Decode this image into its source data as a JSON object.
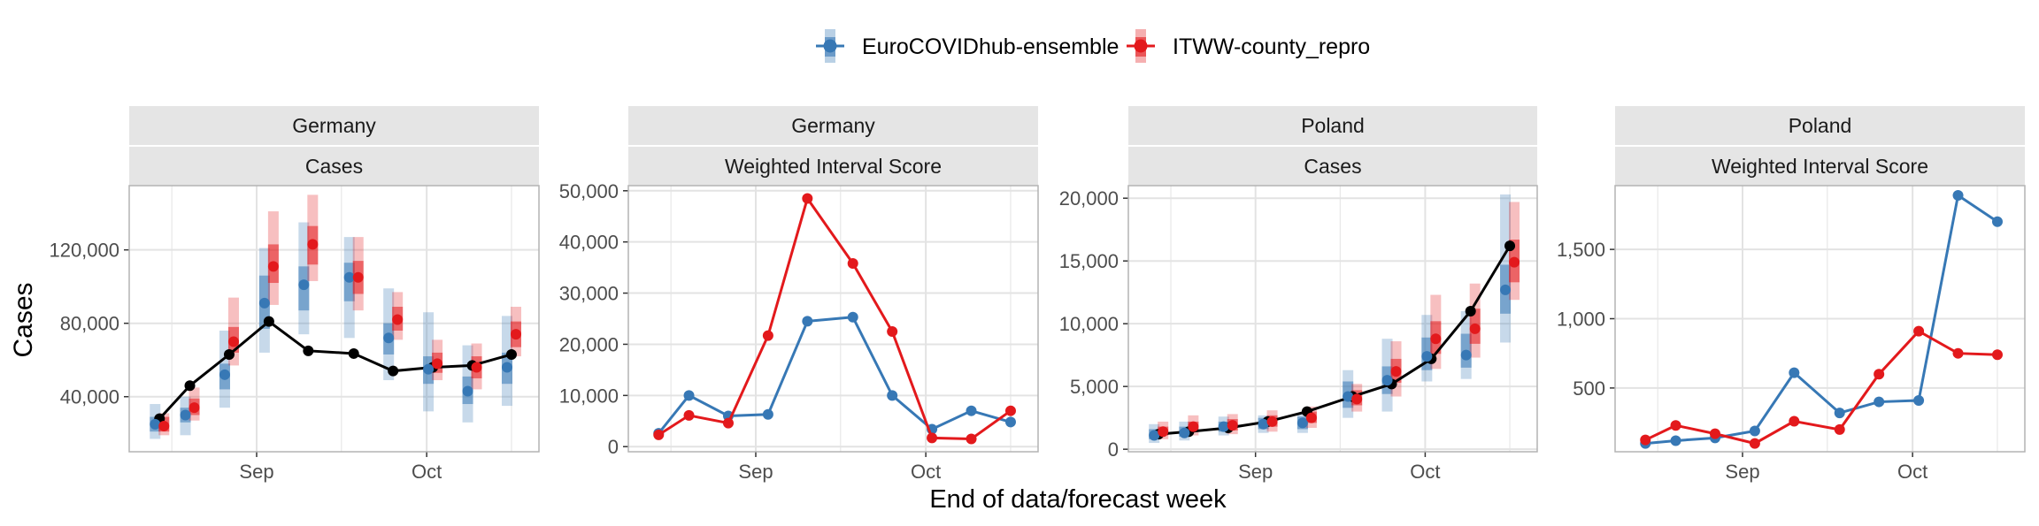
{
  "legend": {
    "items": [
      {
        "label": "EuroCOVIDhub-ensemble",
        "color": "#3778b5"
      },
      {
        "label": "ITWW-county_repro",
        "color": "#e3191c"
      }
    ]
  },
  "shared": {
    "ylabel": "Cases",
    "xlabel": "End of data/forecast week",
    "observed_color": "#000000",
    "strip_fill": "#e5e5e5",
    "grid_color": "#e3e3e3"
  },
  "chart_data": [
    {
      "type": "line",
      "strip": [
        "Germany",
        "Cases"
      ],
      "x_ticks": [
        "Sep",
        "Oct"
      ],
      "y_ticks": [
        "40,000",
        "80,000",
        "120,000"
      ],
      "ylim": [
        10000,
        155000
      ],
      "observed": [
        28000,
        46000,
        63000,
        81000,
        65000,
        63500,
        54000,
        56000,
        57000,
        63000
      ],
      "series": [
        {
          "name": "EuroCOVIDhub-ensemble",
          "median": [
            25000,
            30000,
            52000,
            91000,
            101000,
            105000,
            72000,
            55000,
            43000,
            56000
          ],
          "inner": [
            [
              21000,
              29000
            ],
            [
              26000,
              34000
            ],
            [
              44000,
              58000
            ],
            [
              77000,
              106000
            ],
            [
              87000,
              111000
            ],
            [
              92000,
              113000
            ],
            [
              63000,
              80000
            ],
            [
              47000,
              62000
            ],
            [
              36000,
              51000
            ],
            [
              47000,
              64000
            ]
          ],
          "outer": [
            [
              17000,
              36000
            ],
            [
              19000,
              40000
            ],
            [
              34000,
              76000
            ],
            [
              64000,
              121000
            ],
            [
              74000,
              135000
            ],
            [
              72000,
              127000
            ],
            [
              49000,
              99000
            ],
            [
              32000,
              86000
            ],
            [
              26000,
              68000
            ],
            [
              35000,
              84000
            ]
          ]
        },
        {
          "name": "ITWW-county_repro",
          "median": [
            24000,
            34000,
            70000,
            111000,
            123000,
            105000,
            82000,
            58000,
            56000,
            74000
          ],
          "inner": [
            [
              21000,
              29000
            ],
            [
              30000,
              39000
            ],
            [
              64000,
              78000
            ],
            [
              102000,
              123000
            ],
            [
              112000,
              133000
            ],
            [
              96000,
              114000
            ],
            [
              76000,
              89000
            ],
            [
              53000,
              64000
            ],
            [
              50000,
              62000
            ],
            [
              67000,
              81000
            ]
          ],
          "outer": [
            [
              19000,
              31000
            ],
            [
              27000,
              45000
            ],
            [
              57000,
              94000
            ],
            [
              90000,
              141000
            ],
            [
              103000,
              150000
            ],
            [
              87000,
              127000
            ],
            [
              71000,
              97000
            ],
            [
              49000,
              71000
            ],
            [
              44000,
              69000
            ],
            [
              62000,
              89000
            ]
          ]
        }
      ]
    },
    {
      "type": "line",
      "strip": [
        "Germany",
        "Weighted Interval Score"
      ],
      "x_ticks": [
        "Sep",
        "Oct"
      ],
      "y_ticks": [
        "0",
        "10,000",
        "20,000",
        "30,000",
        "40,000",
        "50,000"
      ],
      "ylim": [
        -1000,
        51000
      ],
      "series": [
        {
          "name": "EuroCOVIDhub-ensemble",
          "values": [
            2600,
            10000,
            6000,
            6300,
            24500,
            25300,
            10000,
            3400,
            7000,
            4800
          ]
        },
        {
          "name": "ITWW-county_repro",
          "values": [
            2300,
            6100,
            4600,
            21700,
            48500,
            35800,
            22500,
            1700,
            1500,
            7000
          ]
        }
      ]
    },
    {
      "type": "line",
      "strip": [
        "Poland",
        "Cases"
      ],
      "x_ticks": [
        "Sep",
        "Oct"
      ],
      "y_ticks": [
        "0",
        "5,000",
        "10,000",
        "15,000",
        "20,000"
      ],
      "ylim": [
        -200,
        21000
      ],
      "observed": [
        1200,
        1400,
        1700,
        2200,
        3000,
        4200,
        5200,
        7200,
        11000,
        16200
      ],
      "series": [
        {
          "name": "EuroCOVIDhub-ensemble",
          "median": [
            1100,
            1300,
            1800,
            2000,
            2100,
            4200,
            5500,
            7400,
            7500,
            12700
          ],
          "inner": [
            [
              800,
              1600
            ],
            [
              1000,
              1800
            ],
            [
              1400,
              2200
            ],
            [
              1600,
              2500
            ],
            [
              1600,
              2600
            ],
            [
              3300,
              5400
            ],
            [
              4400,
              6600
            ],
            [
              6300,
              8900
            ],
            [
              6500,
              9200
            ],
            [
              10800,
              14700
            ]
          ],
          "outer": [
            [
              500,
              2000
            ],
            [
              700,
              2200
            ],
            [
              1100,
              2600
            ],
            [
              1300,
              2700
            ],
            [
              1300,
              2900
            ],
            [
              2500,
              6300
            ],
            [
              3000,
              8800
            ],
            [
              5400,
              10700
            ],
            [
              5600,
              11000
            ],
            [
              8500,
              20300
            ]
          ]
        },
        {
          "name": "ITWW-county_repro",
          "median": [
            1400,
            1800,
            1900,
            2200,
            2500,
            4000,
            6200,
            8800,
            9600,
            14900
          ],
          "inner": [
            [
              1100,
              1800
            ],
            [
              1400,
              2200
            ],
            [
              1500,
              2400
            ],
            [
              1800,
              2700
            ],
            [
              2100,
              3000
            ],
            [
              3500,
              4700
            ],
            [
              5300,
              7200
            ],
            [
              7600,
              10200
            ],
            [
              8400,
              11200
            ],
            [
              13300,
              16700
            ]
          ],
          "outer": [
            [
              800,
              2200
            ],
            [
              1100,
              2700
            ],
            [
              1200,
              2800
            ],
            [
              1400,
              3100
            ],
            [
              1700,
              3400
            ],
            [
              3000,
              5200
            ],
            [
              4200,
              8600
            ],
            [
              6400,
              12300
            ],
            [
              7300,
              13200
            ],
            [
              11900,
              19700
            ]
          ]
        }
      ]
    },
    {
      "type": "line",
      "strip": [
        "Poland",
        "Weighted Interval Score"
      ],
      "x_ticks": [
        "Sep",
        "Oct"
      ],
      "y_ticks": [
        "500",
        "1,000",
        "1,500"
      ],
      "ylim": [
        40,
        1960
      ],
      "series": [
        {
          "name": "EuroCOVIDhub-ensemble",
          "values": [
            100,
            120,
            140,
            190,
            610,
            320,
            400,
            410,
            1890,
            1700
          ]
        },
        {
          "name": "ITWW-county_repro",
          "values": [
            125,
            230,
            170,
            100,
            260,
            200,
            600,
            910,
            750,
            740
          ]
        }
      ]
    }
  ]
}
